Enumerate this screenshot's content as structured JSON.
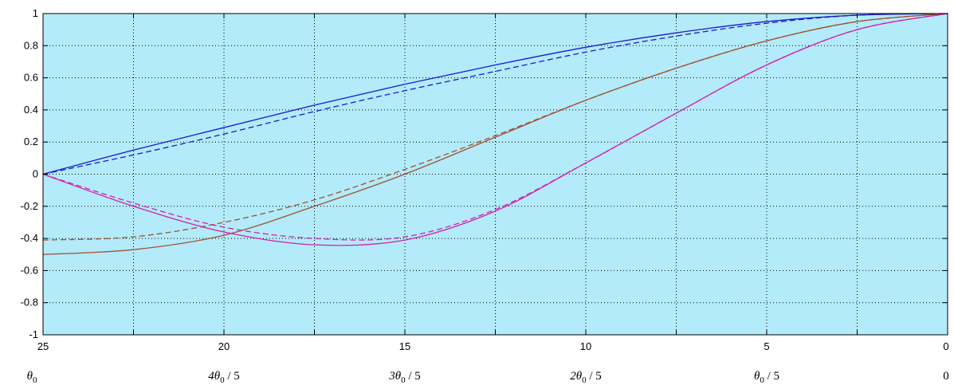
{
  "chart_data": {
    "type": "line",
    "title": "",
    "xlabel": "",
    "ylabel": "",
    "xlim": [
      25,
      0
    ],
    "ylim": [
      -1,
      1
    ],
    "x_reversed": true,
    "grid": true,
    "background": "#b3ebfa",
    "y_ticks": [
      "1",
      "0.8",
      "0.6",
      "0.4",
      "0.2",
      "0",
      "-0.2",
      "-0.4",
      "-0.6",
      "-0.8",
      "-1"
    ],
    "x_ticks": [
      "25",
      "20",
      "15",
      "10",
      "5",
      "0"
    ],
    "x_ticks_secondary": [
      {
        "x": 25,
        "label": "θ0"
      },
      {
        "x": 20,
        "label": "4θ0 / 5"
      },
      {
        "x": 15,
        "label": "3θ0 / 5"
      },
      {
        "x": 10,
        "label": "2θ0 / 5"
      },
      {
        "x": 5,
        "label": "θ0 / 5"
      },
      {
        "x": 0,
        "label": "0"
      }
    ],
    "series": [
      {
        "color": "#1a1ad0",
        "style": "solid",
        "x": [
          25,
          22.5,
          20,
          17.5,
          15,
          12.5,
          10,
          7.5,
          5,
          2.5,
          0
        ],
        "y": [
          0,
          0.15,
          0.29,
          0.43,
          0.56,
          0.68,
          0.79,
          0.88,
          0.95,
          0.99,
          1.0
        ]
      },
      {
        "color": "#1a1ad0",
        "style": "dashed",
        "x": [
          25,
          22.5,
          20,
          17.5,
          15,
          12.5,
          10,
          7.5,
          5,
          2.5,
          0
        ],
        "y": [
          0,
          0.12,
          0.25,
          0.39,
          0.52,
          0.64,
          0.76,
          0.86,
          0.94,
          0.99,
          1.0
        ]
      },
      {
        "color": "#a0522d",
        "style": "solid",
        "x": [
          25,
          22.5,
          20,
          17.5,
          15,
          12.5,
          10,
          7.5,
          5,
          2.5,
          0
        ],
        "y": [
          -0.5,
          -0.47,
          -0.38,
          -0.2,
          0.0,
          0.23,
          0.46,
          0.66,
          0.83,
          0.95,
          1.0
        ]
      },
      {
        "color": "#a0522d",
        "style": "dashed",
        "x": [
          25,
          22.5,
          20,
          17.5,
          15,
          12.5,
          10,
          7.5,
          5,
          2.5,
          0
        ],
        "y": [
          -0.41,
          -0.39,
          -0.3,
          -0.16,
          0.03,
          0.24,
          0.46,
          0.66,
          0.83,
          0.95,
          1.0
        ]
      },
      {
        "color": "#d020b0",
        "style": "solid",
        "x": [
          25,
          22.5,
          20,
          17.5,
          15,
          12.5,
          10,
          7.5,
          5,
          2.5,
          0
        ],
        "y": [
          0,
          -0.2,
          -0.36,
          -0.44,
          -0.41,
          -0.23,
          0.07,
          0.38,
          0.68,
          0.9,
          1.0
        ]
      },
      {
        "color": "#d020b0",
        "style": "dashed",
        "x": [
          25,
          22.5,
          20,
          17.5,
          15,
          12.5,
          10,
          7.5,
          5,
          2.5,
          0
        ],
        "y": [
          0,
          -0.18,
          -0.33,
          -0.4,
          -0.39,
          -0.22,
          0.07,
          0.38,
          0.68,
          0.9,
          1.0
        ]
      }
    ]
  }
}
